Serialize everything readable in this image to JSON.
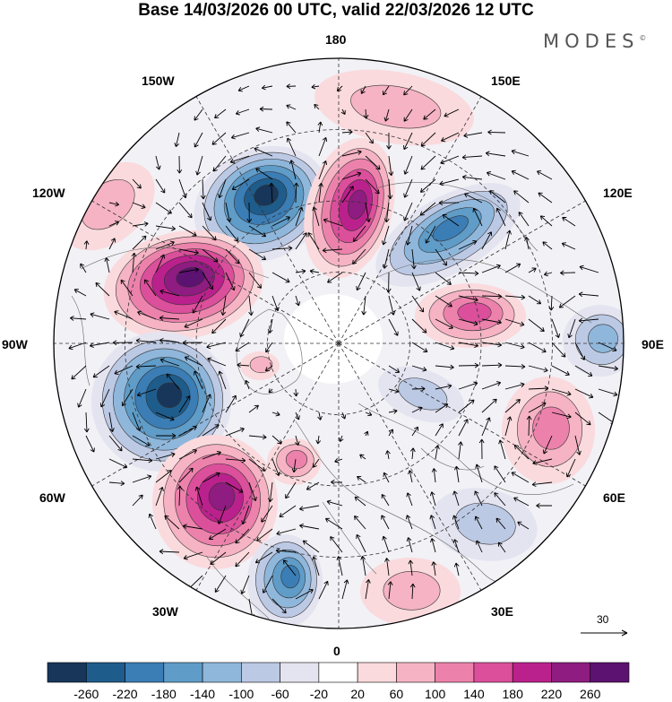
{
  "title": "Base 14/03/2026 00 UTC, valid 22/03/2026 12 UTC",
  "brand": "MODES",
  "brand_mark": "©",
  "longitude_labels": {
    "lon_180": "180",
    "lon_150e": "150E",
    "lon_120e": "120E",
    "lon_90e": "90E",
    "lon_60e": "60E",
    "lon_30e": "30E",
    "lon_0": "0",
    "lon_30w": "30W",
    "lon_60w": "60W",
    "lon_90w": "90W",
    "lon_120w": "120W",
    "lon_150w": "150W"
  },
  "colorbar": {
    "ticks": [
      "-260",
      "-220",
      "-180",
      "-140",
      "-100",
      "-60",
      "-20",
      "20",
      "60",
      "100",
      "140",
      "180",
      "220",
      "260"
    ],
    "colors": [
      "#17365a",
      "#1e5c8c",
      "#3b7db5",
      "#5f9cc8",
      "#8fb7db",
      "#bcc9e4",
      "#e4e4f1",
      "#ffffff",
      "#fadadd",
      "#f5b3c4",
      "#ec82ab",
      "#db4f9b",
      "#bb218c",
      "#8f1c80",
      "#5c1270"
    ]
  },
  "reference_vector": {
    "value": "30"
  }
}
